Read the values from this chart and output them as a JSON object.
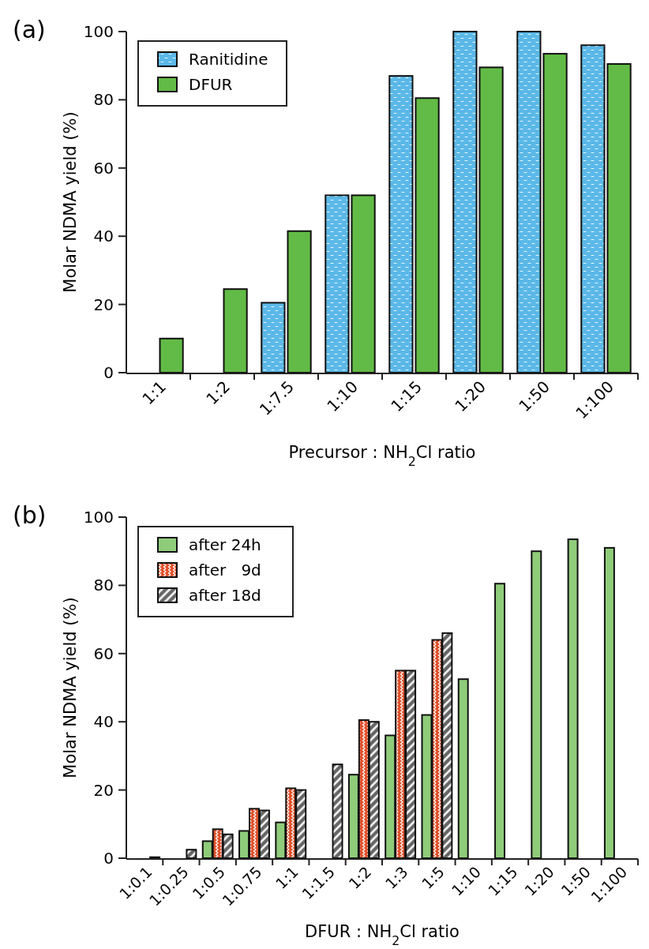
{
  "chart_data": [
    {
      "type": "bar",
      "annotations": [
        "(a)"
      ],
      "xlabel": "Precursor : NH$_{2}$Cl ratio",
      "ylabel": "Molar NDMA yield (%)",
      "categories": [
        "1:1",
        "1:2",
        "1:7.5",
        "1:10",
        "1:15",
        "1:20",
        "1:50",
        "1:100"
      ],
      "series": [
        {
          "name": "Ranitidine",
          "color": "#5bb8e8",
          "values": [
            0,
            0,
            20.5,
            52,
            87,
            100,
            100,
            96
          ]
        },
        {
          "name": "DFUR",
          "color": "#62bb46",
          "values": [
            10,
            24.5,
            41.5,
            52,
            80.5,
            89.5,
            93.5,
            90.5
          ]
        }
      ],
      "ylim": [
        0,
        100
      ],
      "yticks": [
        0,
        20,
        40,
        60,
        80,
        100
      ],
      "legend": "top left"
    },
    {
      "type": "bar",
      "annotations": [
        "(b)"
      ],
      "xlabel": "DFUR : NH$_{2}$Cl ratio",
      "ylabel": "Molar NDMA yield (%)",
      "categories": [
        "1:0.1",
        "1:0.25",
        "1:0.5",
        "1:0.75",
        "1:1",
        "1:1.5",
        "1:2",
        "1:3",
        "1:5",
        "1:10",
        "1:15",
        "1:20",
        "1:50",
        "1:100"
      ],
      "series": [
        {
          "name": "after 24h",
          "color": "#8fcc7a",
          "values": [
            null,
            null,
            5,
            8,
            10.5,
            null,
            24.5,
            36,
            42,
            52.5,
            80.5,
            90,
            93.5,
            91
          ]
        },
        {
          "name": "after   9d",
          "color": "#e0502a",
          "values": [
            null,
            null,
            8.5,
            14.5,
            20.5,
            null,
            40.5,
            55,
            64,
            null,
            null,
            null,
            null,
            null
          ]
        },
        {
          "name": "after 18d",
          "color": "#666666",
          "values": [
            0.3,
            2.5,
            7,
            14,
            20,
            27.5,
            40,
            55,
            66,
            null,
            null,
            null,
            null,
            null
          ]
        }
      ],
      "ylim": [
        0,
        100
      ],
      "yticks": [
        0,
        20,
        40,
        60,
        80,
        100
      ],
      "legend": "top left"
    }
  ]
}
